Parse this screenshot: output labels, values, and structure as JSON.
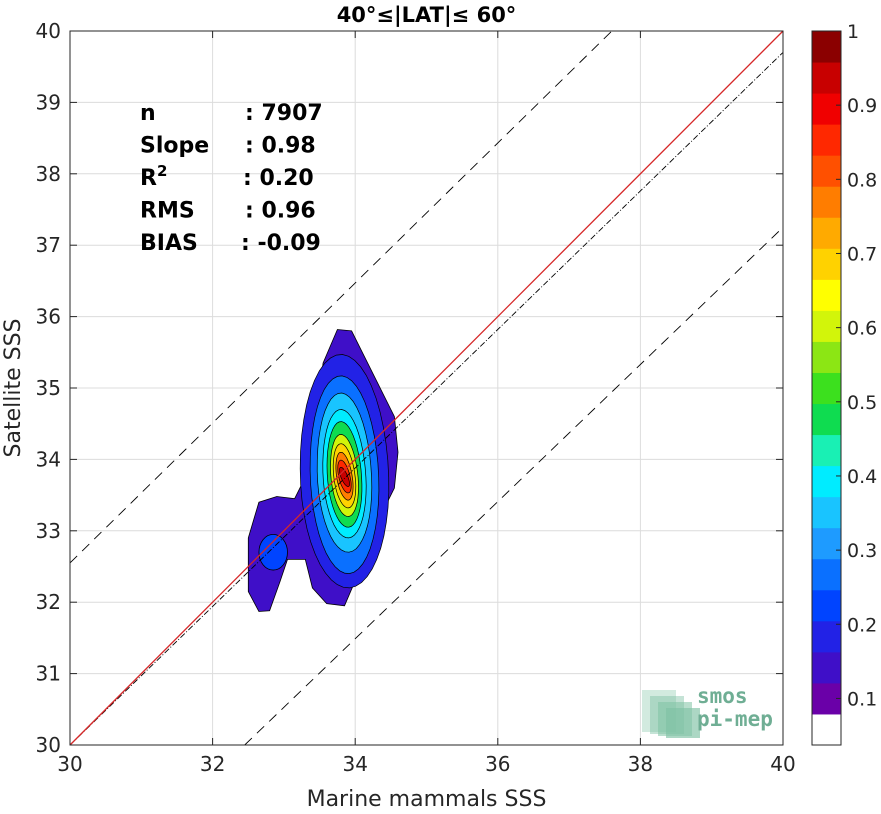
{
  "chart_data": {
    "type": "contour-scatter",
    "title": "40°≤|LAT|≤ 60°",
    "xlabel": "Marine mammals SSS",
    "ylabel": "Satellite SSS",
    "xlim": [
      30,
      40
    ],
    "ylim": [
      30,
      40
    ],
    "xticks": [
      "30",
      "32",
      "34",
      "36",
      "38",
      "40"
    ],
    "yticks": [
      "30",
      "31",
      "32",
      "33",
      "34",
      "35",
      "36",
      "37",
      "38",
      "39",
      "40"
    ],
    "grid": true,
    "stats": [
      {
        "label": "n",
        "value": ": 7907"
      },
      {
        "label": "Slope",
        "value": ": 0.98"
      },
      {
        "label": "R",
        "sup": "2",
        "value": ": 0.20"
      },
      {
        "label": "RMS",
        "value": ": 0.96"
      },
      {
        "label": "BIAS",
        "value": ": -0.09"
      }
    ],
    "lines": {
      "identity": {
        "from": [
          30,
          30
        ],
        "to": [
          40,
          40
        ],
        "color": "#d62728"
      },
      "fit": {
        "from": [
          30,
          30
        ],
        "to": [
          40,
          39.7
        ],
        "color": "#000000"
      },
      "upper_bound": {
        "from": [
          30,
          32.55
        ],
        "to": [
          37.6,
          40
        ],
        "offset": 2.55
      },
      "lower_bound": {
        "from": [
          32.45,
          30
        ],
        "to": [
          40,
          37.25
        ],
        "offset": -2.6
      }
    },
    "density_peak": {
      "x": 33.85,
      "y": 33.75
    },
    "secondary_peak": {
      "x": 32.85,
      "y": 32.7
    },
    "contour_levels": [
      0.05,
      0.1,
      0.2,
      0.3,
      0.4,
      0.5,
      0.6,
      0.7,
      0.8,
      0.9
    ],
    "colorbar": {
      "ticks": [
        "0.1",
        "0.2",
        "0.3",
        "0.4",
        "0.5",
        "0.6",
        "0.7",
        "0.8",
        "0.9",
        "1"
      ],
      "tick_values": [
        0.1,
        0.2,
        0.3,
        0.4,
        0.5,
        0.6,
        0.7,
        0.8,
        0.9,
        1.0
      ],
      "colors": [
        "#ffffff",
        "#6a00a8",
        "#3f0fc8",
        "#2222e6",
        "#0044ff",
        "#0a70ff",
        "#1e9bff",
        "#19c4ff",
        "#00ecff",
        "#19f0b4",
        "#0fdc50",
        "#3ce01e",
        "#8ce614",
        "#d2f50a",
        "#ffff00",
        "#ffd200",
        "#ffaa00",
        "#ff7d00",
        "#ff5000",
        "#ff2800",
        "#f00000",
        "#c80000",
        "#8b0000"
      ]
    }
  },
  "logo": {
    "line1": "smos",
    "line2": "pi-mep"
  }
}
